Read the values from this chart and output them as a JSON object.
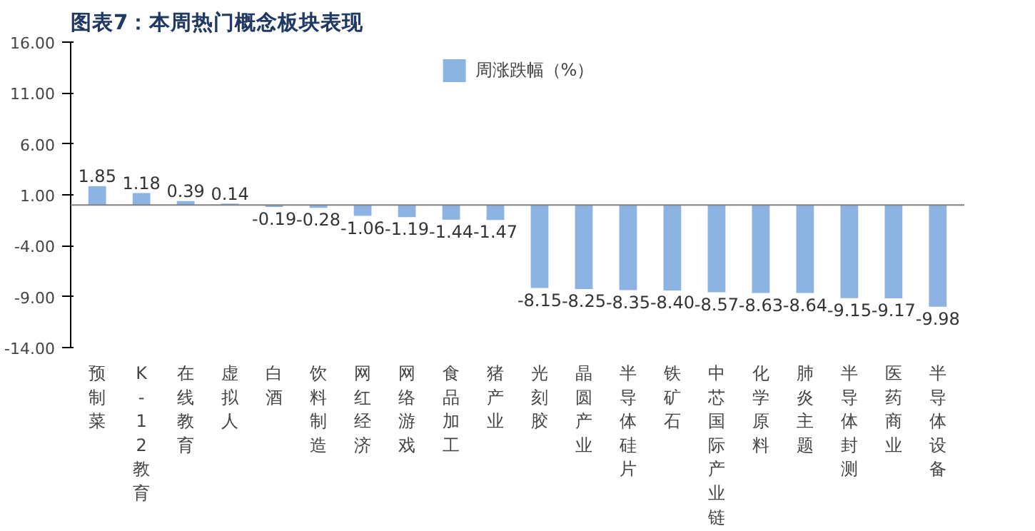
{
  "chart_data": {
    "type": "bar",
    "title": "图表7：本周热门概念板块表现",
    "categories": [
      "预制菜",
      "K-12教育",
      "在线教育",
      "虚拟人",
      "白酒",
      "饮料制造",
      "网红经济",
      "网络游戏",
      "食品加工",
      "猪产业",
      "光刻胶",
      "晶圆产业",
      "半导体硅片",
      "铁矿石",
      "中芯国际产业链",
      "化学原料",
      "肺炎主题",
      "半导体封测",
      "医药商业",
      "半导体设备"
    ],
    "series": [
      {
        "name": "周涨跌幅（%）",
        "color": "#8db3e2",
        "values": [
          1.85,
          1.18,
          0.39,
          0.14,
          -0.19,
          -0.28,
          -1.06,
          -1.19,
          -1.44,
          -1.47,
          -8.15,
          -8.25,
          -8.35,
          -8.4,
          -8.57,
          -8.63,
          -8.64,
          -9.15,
          -9.17,
          -9.98
        ],
        "value_labels": [
          "1.85",
          "1.18",
          "0.39",
          "0.14",
          "-0.19",
          "-0.28",
          "-1.06",
          "-1.19",
          "-1.44",
          "-1.47",
          "-8.15",
          "-8.25",
          "-8.35",
          "-8.40",
          "-8.57",
          "-8.63",
          "-8.64",
          "-9.15",
          "-9.17",
          "-9.98"
        ]
      }
    ],
    "ylim": [
      -14,
      16
    ],
    "yticks": [
      {
        "value": -14,
        "label": "-14.00"
      },
      {
        "value": -9,
        "label": "-9.00"
      },
      {
        "value": -4,
        "label": "-4.00"
      },
      {
        "value": 1,
        "label": "1.00"
      },
      {
        "value": 6,
        "label": "6.00"
      },
      {
        "value": 11,
        "label": "11.00"
      },
      {
        "value": 16,
        "label": "16.00"
      }
    ],
    "grid": false,
    "legend": "top"
  }
}
